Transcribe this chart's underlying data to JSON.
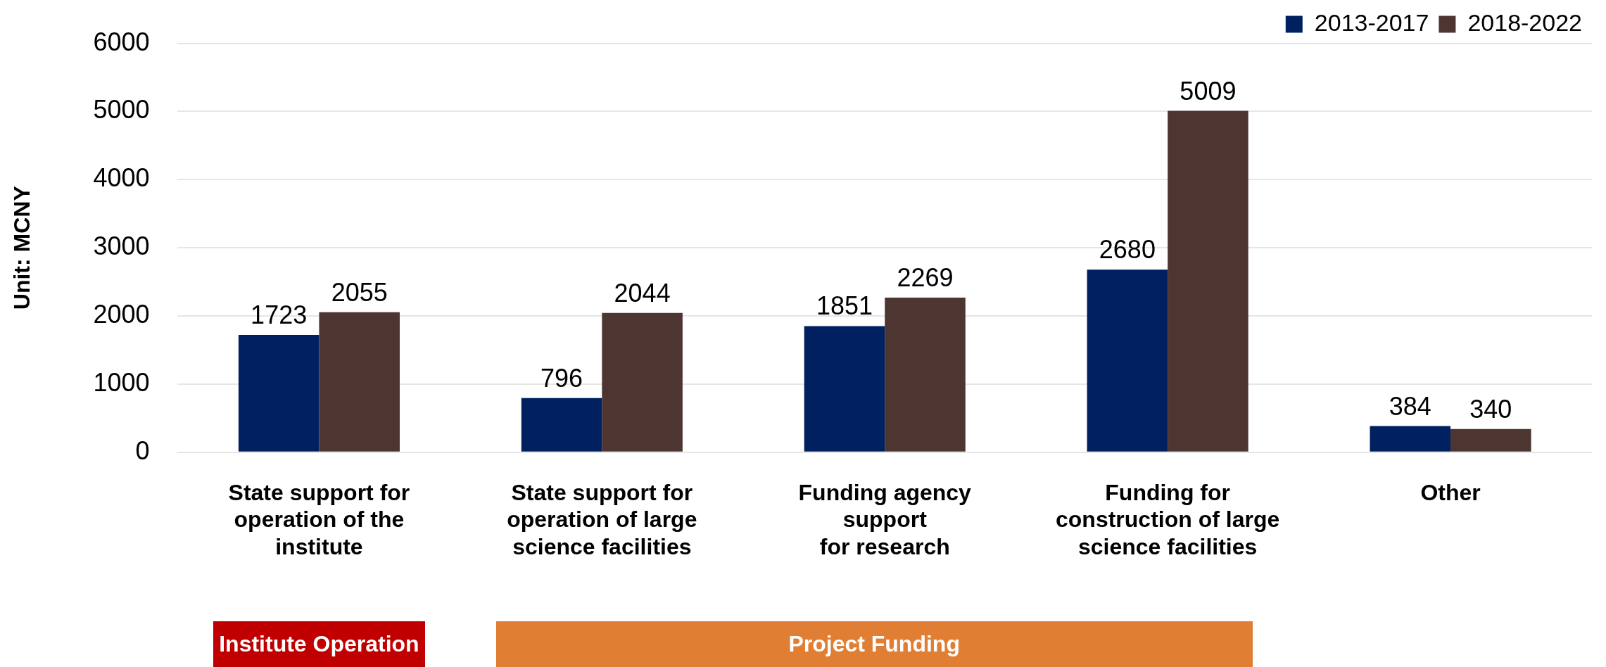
{
  "chart_data": {
    "type": "bar",
    "ylabel": "Unit: MCNY",
    "categories": [
      "State support for\noperation of the\ninstitute",
      "State support for\noperation of large\nscience facilities",
      "Funding agency\nsupport\nfor research",
      "Funding for\nconstruction of large\nscience facilities",
      "Other"
    ],
    "series": [
      {
        "name": "2013-2017",
        "color": "#002060",
        "values": [
          1723,
          796,
          1851,
          2680,
          384
        ]
      },
      {
        "name": "2018-2022",
        "color": "#4d3532",
        "values": [
          2055,
          2044,
          2269,
          5009,
          340
        ]
      }
    ],
    "ylim": [
      0,
      6000
    ],
    "yticks": [
      0,
      1000,
      2000,
      3000,
      4000,
      5000,
      6000
    ],
    "grid": "y",
    "legend": "top right",
    "data_labels": true,
    "annotations": [
      "Institute Operation",
      "Project Funding"
    ]
  }
}
